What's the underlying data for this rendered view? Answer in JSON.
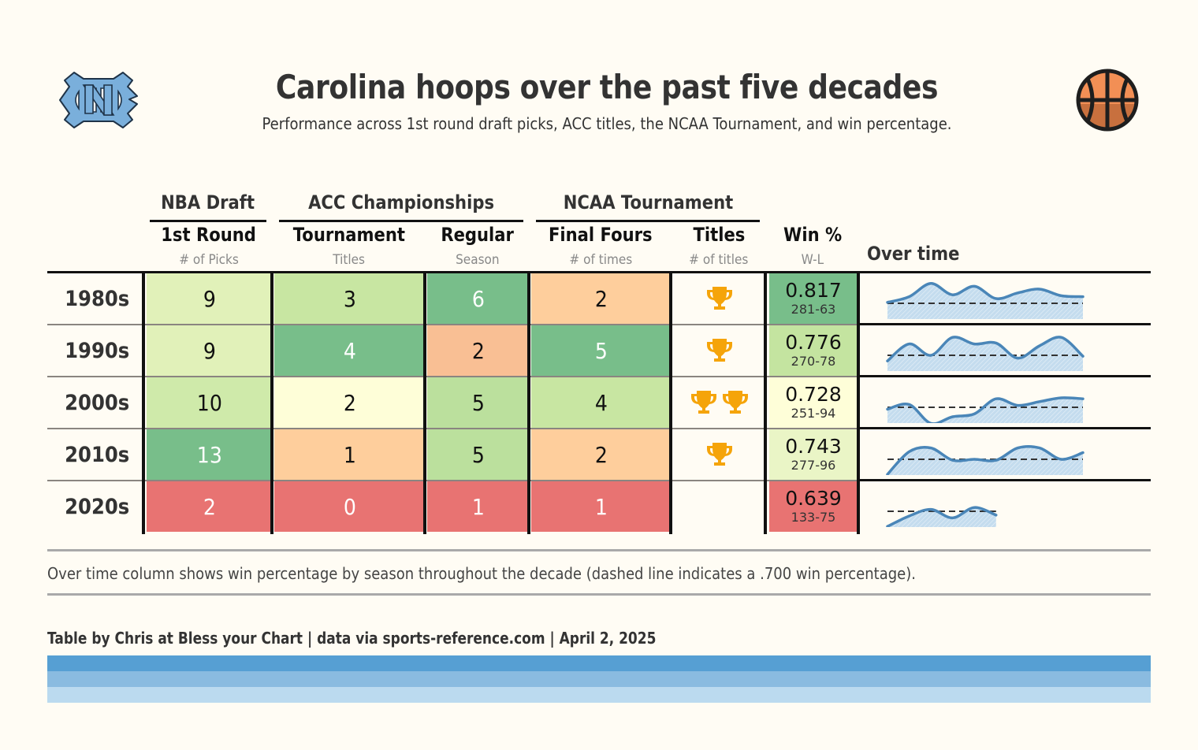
{
  "header": {
    "title": "Carolina hoops over the past five decades",
    "subtitle": "Performance across 1st round draft picks, ACC titles, the NCAA Tournament, and win percentage.",
    "left_logo_icon": "unc-nc-logo-icon",
    "right_logo_icon": "basketball-icon"
  },
  "spanners": [
    {
      "label": "NBA Draft"
    },
    {
      "label": "ACC Championships"
    },
    {
      "label": "NCAA Tournament"
    }
  ],
  "columns": [
    {
      "key": "picks",
      "label": "1st Round",
      "sub": "# of Picks"
    },
    {
      "key": "acc_tourn",
      "label": "Tournament",
      "sub": "Titles"
    },
    {
      "key": "acc_reg",
      "label": "Regular",
      "sub": "Season"
    },
    {
      "key": "final_fours",
      "label": "Final Fours",
      "sub": "# of times"
    },
    {
      "key": "titles",
      "label": "Titles",
      "sub": "# of titles"
    },
    {
      "key": "win",
      "label": "Win %",
      "sub": "W-L"
    },
    {
      "key": "overtime",
      "label": "Over time",
      "sub": ""
    }
  ],
  "colors": {
    "dark_green": "#78be8a",
    "mid_green": "#bbe09d",
    "light_green": "#c8e6a2",
    "pale_green": "#e1f1b9",
    "pale_yellow_green": "#eaf5c6",
    "yellow": "#fefed8",
    "peach": "#fece9c",
    "salmon": "#f9bf94",
    "red": "#e87372",
    "trophy": "#f5a40a",
    "spark_line": "#4a86b8",
    "spark_fill": "#c4dcee",
    "carolina_blue_1": "#569fd3",
    "carolina_blue_2": "#8abbe0",
    "carolina_blue_3": "#bbdaef"
  },
  "rows": [
    {
      "decade": "1980s",
      "picks": {
        "value": "9",
        "bg": "#e1f1b9",
        "fg": "#111"
      },
      "acc_tourn": {
        "value": "3",
        "bg": "#c8e6a2",
        "fg": "#111"
      },
      "acc_reg": {
        "value": "6",
        "bg": "#78be8a",
        "fg": "#ffffff"
      },
      "final_fours": {
        "value": "2",
        "bg": "#fece9c",
        "fg": "#111"
      },
      "titles": 1,
      "win_pct": "0.817",
      "win_wl": "281-63",
      "win_bg": "#78be8a"
    },
    {
      "decade": "1990s",
      "picks": {
        "value": "9",
        "bg": "#e1f1b9",
        "fg": "#111"
      },
      "acc_tourn": {
        "value": "4",
        "bg": "#78be8a",
        "fg": "#ffffff"
      },
      "acc_reg": {
        "value": "2",
        "bg": "#f9bf94",
        "fg": "#111"
      },
      "final_fours": {
        "value": "5",
        "bg": "#78be8a",
        "fg": "#ffffff"
      },
      "titles": 1,
      "win_pct": "0.776",
      "win_wl": "270-78",
      "win_bg": "#c4e4a0"
    },
    {
      "decade": "2000s",
      "picks": {
        "value": "10",
        "bg": "#cfeaaa",
        "fg": "#111"
      },
      "acc_tourn": {
        "value": "2",
        "bg": "#fefed8",
        "fg": "#111"
      },
      "acc_reg": {
        "value": "5",
        "bg": "#bbe09d",
        "fg": "#111"
      },
      "final_fours": {
        "value": "4",
        "bg": "#c8e6a2",
        "fg": "#111"
      },
      "titles": 2,
      "win_pct": "0.728",
      "win_wl": "251-94",
      "win_bg": "#fefed8"
    },
    {
      "decade": "2010s",
      "picks": {
        "value": "13",
        "bg": "#78be8a",
        "fg": "#ffffff"
      },
      "acc_tourn": {
        "value": "1",
        "bg": "#fece9c",
        "fg": "#111"
      },
      "acc_reg": {
        "value": "5",
        "bg": "#bbe09d",
        "fg": "#111"
      },
      "final_fours": {
        "value": "2",
        "bg": "#fece9c",
        "fg": "#111"
      },
      "titles": 1,
      "win_pct": "0.743",
      "win_wl": "277-96",
      "win_bg": "#eaf5c6"
    },
    {
      "decade": "2020s",
      "picks": {
        "value": "2",
        "bg": "#e87372",
        "fg": "#ffffff"
      },
      "acc_tourn": {
        "value": "0",
        "bg": "#e87372",
        "fg": "#ffffff"
      },
      "acc_reg": {
        "value": "1",
        "bg": "#e87372",
        "fg": "#ffffff"
      },
      "final_fours": {
        "value": "1",
        "bg": "#e87372",
        "fg": "#ffffff"
      },
      "titles": 0,
      "win_pct": "0.639",
      "win_wl": "133-75",
      "win_bg": "#e87372"
    }
  ],
  "footer": {
    "note": "Over time column shows win percentage by season throughout the decade (dashed line indicates a .700 win percentage).",
    "credit": "Table by Chris at Bless your Chart | data via sports-reference.com | April 2, 2025"
  },
  "chart_data": {
    "type": "table",
    "title": "Carolina hoops over the past five decades",
    "subtitle": "Performance across 1st round draft picks, ACC titles, the NCAA Tournament, and win percentage.",
    "columns": [
      "Decade",
      "1st Round # of Picks",
      "ACC Tournament Titles",
      "ACC Regular Season",
      "NCAA Final Fours",
      "NCAA Titles",
      "Win %",
      "W-L"
    ],
    "rows": [
      [
        "1980s",
        9,
        3,
        6,
        2,
        1,
        0.817,
        "281-63"
      ],
      [
        "1990s",
        9,
        4,
        2,
        5,
        1,
        0.776,
        "270-78"
      ],
      [
        "2000s",
        10,
        2,
        5,
        4,
        2,
        0.728,
        "251-94"
      ],
      [
        "2010s",
        13,
        1,
        5,
        2,
        1,
        0.743,
        "277-96"
      ],
      [
        "2020s",
        2,
        0,
        1,
        1,
        0,
        0.639,
        "133-75"
      ]
    ],
    "sparklines": {
      "type": "area",
      "description": "Win percentage by season throughout the decade",
      "reference_line": 0.7,
      "ylim": [
        0.55,
        0.95
      ],
      "series": [
        {
          "name": "1980s",
          "values": [
            0.71,
            0.77,
            0.91,
            0.79,
            0.88,
            0.75,
            0.81,
            0.85,
            0.78,
            0.77
          ]
        },
        {
          "name": "1990s",
          "values": [
            0.64,
            0.82,
            0.7,
            0.89,
            0.82,
            0.83,
            0.67,
            0.8,
            0.89,
            0.69
          ]
        },
        {
          "name": "2000s",
          "values": [
            0.68,
            0.73,
            0.53,
            0.6,
            0.63,
            0.79,
            0.72,
            0.76,
            0.8,
            0.79
          ]
        },
        {
          "name": "2010s",
          "values": [
            0.54,
            0.78,
            0.82,
            0.69,
            0.7,
            0.69,
            0.82,
            0.82,
            0.7,
            0.77
          ]
        },
        {
          "name": "2020s",
          "values": [
            0.54,
            0.65,
            0.72,
            0.63,
            0.74,
            0.66
          ]
        }
      ]
    }
  }
}
